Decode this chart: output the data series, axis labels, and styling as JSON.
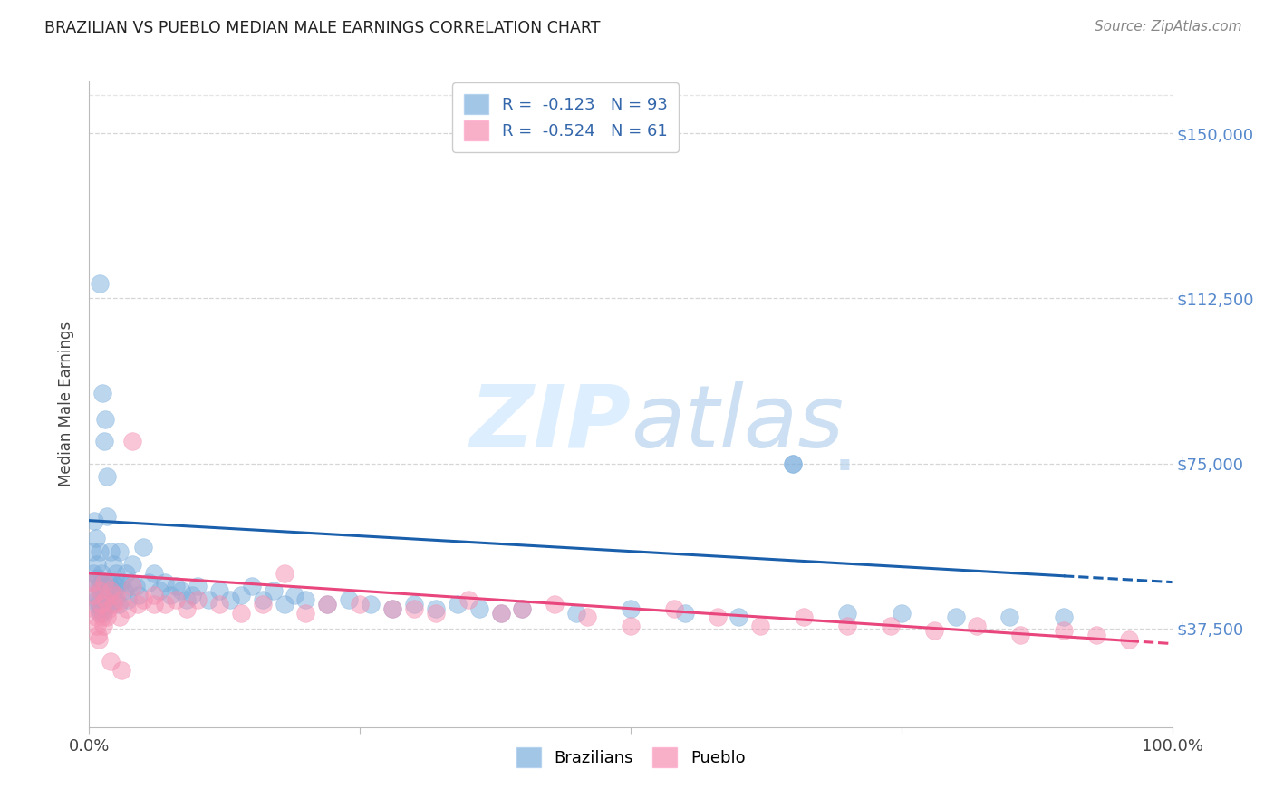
{
  "title": "BRAZILIAN VS PUEBLO MEDIAN MALE EARNINGS CORRELATION CHART",
  "source": "Source: ZipAtlas.com",
  "ylabel": "Median Male Earnings",
  "ytick_labels": [
    "$37,500",
    "$75,000",
    "$112,500",
    "$150,000"
  ],
  "ytick_values": [
    37500,
    75000,
    112500,
    150000
  ],
  "ylim": [
    15000,
    162000
  ],
  "xlim": [
    0.0,
    1.0
  ],
  "legend1_R": "-0.123",
  "legend1_N": "93",
  "legend2_R": "-0.524",
  "legend2_N": "61",
  "color_blue": "#7BAEDC",
  "color_pink": "#F48FB1",
  "blue_alpha": 0.5,
  "pink_alpha": 0.5,
  "trend_blue": "#1A5FAB",
  "trend_pink": "#E8467C",
  "background": "#FFFFFF",
  "grid_color": "#CCCCCC",
  "watermark_color": "#DDEEFF",
  "brazilians_x": [
    0.003,
    0.004,
    0.005,
    0.005,
    0.006,
    0.006,
    0.007,
    0.007,
    0.008,
    0.008,
    0.009,
    0.009,
    0.01,
    0.01,
    0.01,
    0.011,
    0.011,
    0.012,
    0.012,
    0.013,
    0.013,
    0.014,
    0.014,
    0.015,
    0.015,
    0.016,
    0.016,
    0.017,
    0.018,
    0.019,
    0.02,
    0.021,
    0.022,
    0.023,
    0.024,
    0.025,
    0.026,
    0.027,
    0.028,
    0.03,
    0.032,
    0.034,
    0.036,
    0.038,
    0.04,
    0.043,
    0.046,
    0.05,
    0.055,
    0.06,
    0.065,
    0.07,
    0.075,
    0.08,
    0.085,
    0.09,
    0.095,
    0.1,
    0.11,
    0.12,
    0.13,
    0.14,
    0.15,
    0.16,
    0.17,
    0.18,
    0.19,
    0.2,
    0.22,
    0.24,
    0.26,
    0.28,
    0.3,
    0.32,
    0.34,
    0.36,
    0.38,
    0.4,
    0.45,
    0.5,
    0.55,
    0.6,
    0.65,
    0.7,
    0.75,
    0.8,
    0.85,
    0.9,
    0.01,
    0.012,
    0.014,
    0.016,
    0.65
  ],
  "brazilians_y": [
    55000,
    50000,
    48000,
    62000,
    45000,
    58000,
    44000,
    52000,
    43000,
    49000,
    42000,
    47000,
    41000,
    46000,
    55000,
    42000,
    50000,
    43000,
    48000,
    41000,
    47000,
    42000,
    46000,
    43000,
    85000,
    44000,
    63000,
    45000,
    48000,
    43000,
    55000,
    48000,
    52000,
    46000,
    44000,
    50000,
    47000,
    43000,
    55000,
    48000,
    46000,
    50000,
    44000,
    48000,
    52000,
    47000,
    45000,
    56000,
    48000,
    50000,
    46000,
    48000,
    45000,
    47000,
    46000,
    44000,
    45000,
    47000,
    44000,
    46000,
    44000,
    45000,
    47000,
    44000,
    46000,
    43000,
    45000,
    44000,
    43000,
    44000,
    43000,
    42000,
    43000,
    42000,
    43000,
    42000,
    41000,
    42000,
    41000,
    42000,
    41000,
    40000,
    75000,
    41000,
    41000,
    40000,
    40000,
    40000,
    116000,
    91000,
    80000,
    72000,
    75000
  ],
  "pueblo_x": [
    0.003,
    0.004,
    0.005,
    0.006,
    0.007,
    0.008,
    0.009,
    0.01,
    0.011,
    0.012,
    0.013,
    0.014,
    0.015,
    0.016,
    0.018,
    0.02,
    0.022,
    0.025,
    0.028,
    0.03,
    0.035,
    0.04,
    0.045,
    0.05,
    0.06,
    0.07,
    0.08,
    0.09,
    0.1,
    0.12,
    0.14,
    0.16,
    0.18,
    0.2,
    0.22,
    0.25,
    0.28,
    0.3,
    0.32,
    0.35,
    0.38,
    0.4,
    0.43,
    0.46,
    0.5,
    0.54,
    0.58,
    0.62,
    0.66,
    0.7,
    0.74,
    0.78,
    0.82,
    0.86,
    0.9,
    0.93,
    0.96,
    0.02,
    0.03,
    0.04,
    0.06
  ],
  "pueblo_y": [
    48000,
    45000,
    42000,
    40000,
    38000,
    36000,
    35000,
    46000,
    43000,
    40000,
    38000,
    48000,
    44000,
    40000,
    42000,
    46000,
    43000,
    45000,
    40000,
    44000,
    42000,
    47000,
    43000,
    44000,
    45000,
    43000,
    44000,
    42000,
    44000,
    43000,
    41000,
    43000,
    50000,
    41000,
    43000,
    43000,
    42000,
    42000,
    41000,
    44000,
    41000,
    42000,
    43000,
    40000,
    38000,
    42000,
    40000,
    38000,
    40000,
    38000,
    38000,
    37000,
    38000,
    36000,
    37000,
    36000,
    35000,
    30000,
    28000,
    80000,
    43000
  ]
}
